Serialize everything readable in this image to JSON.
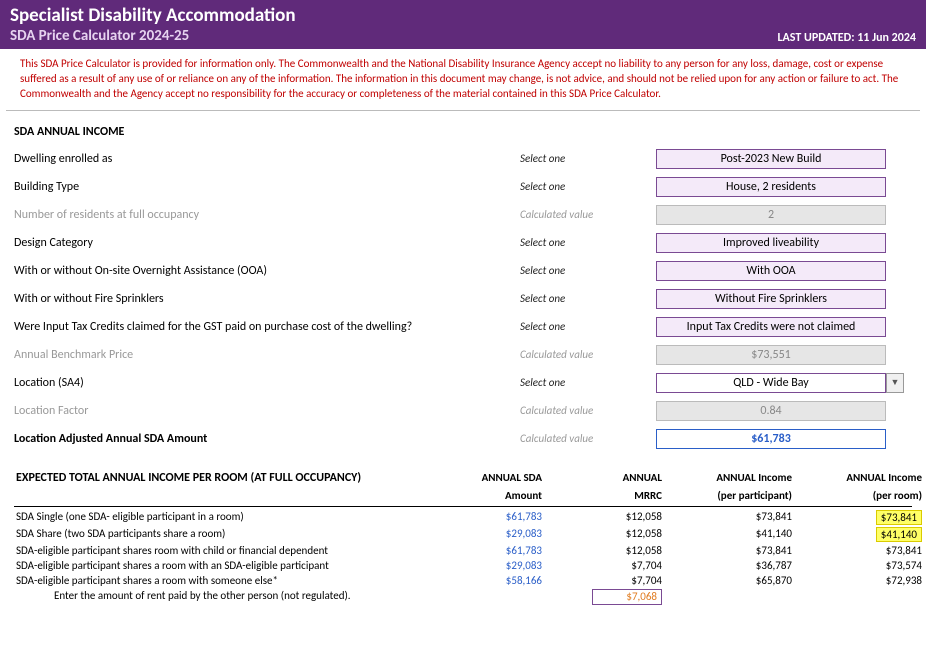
{
  "header": {
    "title": "Specialist Disability Accommodation",
    "subtitle": "SDA Price Calculator 2024-25",
    "updated_label": "LAST UPDATED:",
    "updated_date": "11 Jun 2024"
  },
  "disclaimer": "This SDA Price Calculator is provided for information only. The Commonwealth and the National Disability Insurance Agency accept no liability to any person for any loss, damage, cost or expense suffered as a result of any use of or reliance on any of the information. The information in this document may change, is not advice, and should not be relied upon for any action or failure to act. The Commonwealth and the Agency accept no responsibility for the accuracy or completeness of the material contained in this SDA Price Calculator.",
  "sections": {
    "annual_income_title": "SDA ANNUAL INCOME",
    "table_title": "EXPECTED TOTAL ANNUAL INCOME PER ROOM (AT FULL OCCUPANCY)"
  },
  "hints": {
    "select": "Select one",
    "calc": "Calculated value"
  },
  "inputs": {
    "dwelling": {
      "label": "Dwelling enrolled as",
      "value": "Post-2023 New Build"
    },
    "building_type": {
      "label": "Building Type",
      "value": "House, 2 residents"
    },
    "residents": {
      "label": "Number of residents at full occupancy",
      "value": "2"
    },
    "design_category": {
      "label": "Design Category",
      "value": "Improved liveability"
    },
    "ooa": {
      "label": "With or without On-site Overnight Assistance (OOA)",
      "value": "With OOA"
    },
    "fire": {
      "label": "With or without Fire Sprinklers",
      "value": "Without Fire Sprinklers"
    },
    "gst": {
      "label": "Were Input Tax Credits claimed for the GST paid on purchase cost of the dwelling?",
      "value": "Input Tax Credits were not claimed"
    },
    "benchmark": {
      "label": "Annual Benchmark Price",
      "value": "$73,551"
    },
    "location": {
      "label": "Location (SA4)",
      "value": "QLD - Wide Bay"
    },
    "location_factor": {
      "label": "Location Factor",
      "value": "0.84"
    },
    "adjusted": {
      "label": "Location Adjusted Annual SDA Amount",
      "value": "$61,783"
    }
  },
  "table": {
    "headers": {
      "c1a": "ANNUAL SDA",
      "c1b": "Amount",
      "c2a": "ANNUAL",
      "c2b": "MRRC",
      "c3a": "ANNUAL Income",
      "c3b": "(per participant)",
      "c4a": "ANNUAL Income",
      "c4b": "(per room)"
    },
    "rows": [
      {
        "label": "SDA Single (one SDA- eligible participant in a room)",
        "sda": "$61,783",
        "mrrc": "$12,058",
        "per_part": "$73,841",
        "per_room": "$73,841",
        "hl": true
      },
      {
        "label": "SDA Share (two SDA participants share a room)",
        "sda": "$29,083",
        "mrrc": "$12,058",
        "per_part": "$41,140",
        "per_room": "$41,140",
        "hl": true
      },
      {
        "label": "SDA-eligible participant shares room with child or financial dependent",
        "sda": "$61,783",
        "mrrc": "$12,058",
        "per_part": "$73,841",
        "per_room": "$73,841",
        "hl": false
      },
      {
        "label": "SDA-eligible participant shares a room with an SDA-eligible participant",
        "sda": "$29,083",
        "mrrc": "$7,704",
        "per_part": "$36,787",
        "per_room": "$73,574",
        "hl": false
      },
      {
        "label": "SDA-eligible participant shares a room with someone else*",
        "sda": "$58,166",
        "mrrc": "$7,704",
        "per_part": "$65,870",
        "per_room": "$72,938",
        "hl": false
      }
    ],
    "rent_note": "Enter the amount of rent paid by the other person (not regulated).",
    "rent_value": "$7,068"
  }
}
